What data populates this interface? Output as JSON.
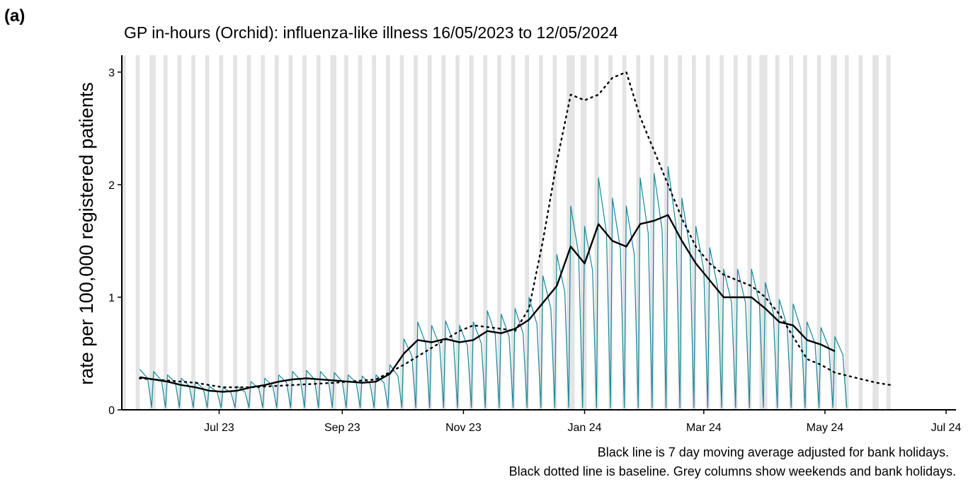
{
  "chart_data": {
    "type": "line",
    "panel_label": "(a)",
    "title": "GP in-hours (Orchid): influenza-like illness 16/05/2023 to 12/05/2024",
    "y_label": "rate per 100,000 registered patients",
    "notes": [
      "Black line is 7 day moving average adjusted for bank holidays.",
      "Black dotted line is baseline. Grey columns show weekends and bank holidays."
    ],
    "xlim": [
      "2023-05-13",
      "2024-07-06"
    ],
    "xticks": [
      {
        "value": "2023-07-01",
        "label": "Jul 23"
      },
      {
        "value": "2023-09-01",
        "label": "Sep 23"
      },
      {
        "value": "2023-11-01",
        "label": "Nov 23"
      },
      {
        "value": "2024-01-01",
        "label": "Jan 24"
      },
      {
        "value": "2024-03-01",
        "label": "Mar 24"
      },
      {
        "value": "2024-05-01",
        "label": "May 24"
      },
      {
        "value": "2024-07-01",
        "label": "Jul 24"
      }
    ],
    "ylim": [
      0,
      3.15
    ],
    "yticks": [
      0,
      1,
      2,
      3
    ],
    "weekend_shading": true,
    "shading_range": [
      "2023-05-13",
      "2024-06-02"
    ],
    "shading_color": "#e3e3e3",
    "bank_holidays": [
      "2023-05-29",
      "2023-08-28",
      "2023-12-25",
      "2023-12-26",
      "2024-01-01",
      "2024-03-29",
      "2024-04-01",
      "2024-05-06",
      "2024-05-27"
    ],
    "series": [
      {
        "name": "daily rate",
        "color": "#17879a",
        "width": 1.2,
        "dash": null,
        "x": [
          "2023-05-22",
          "2023-05-26",
          "2023-05-28",
          "2023-05-29",
          "2023-06-02",
          "2023-06-04",
          "2023-06-05",
          "2023-06-09",
          "2023-06-11",
          "2023-06-12",
          "2023-06-16",
          "2023-06-18",
          "2023-06-19",
          "2023-06-23",
          "2023-06-25",
          "2023-06-26",
          "2023-06-30",
          "2023-07-02",
          "2023-07-03",
          "2023-07-07",
          "2023-07-09",
          "2023-07-10",
          "2023-07-14",
          "2023-07-16",
          "2023-07-17",
          "2023-07-21",
          "2023-07-23",
          "2023-07-24",
          "2023-07-28",
          "2023-07-30",
          "2023-07-31",
          "2023-08-04",
          "2023-08-06",
          "2023-08-07",
          "2023-08-11",
          "2023-08-13",
          "2023-08-14",
          "2023-08-18",
          "2023-08-20",
          "2023-08-21",
          "2023-08-25",
          "2023-08-27",
          "2023-08-28",
          "2023-09-01",
          "2023-09-03",
          "2023-09-04",
          "2023-09-08",
          "2023-09-10",
          "2023-09-11",
          "2023-09-15",
          "2023-09-17",
          "2023-09-18",
          "2023-09-22",
          "2023-09-24",
          "2023-09-25",
          "2023-09-29",
          "2023-10-01",
          "2023-10-02",
          "2023-10-06",
          "2023-10-08",
          "2023-10-09",
          "2023-10-13",
          "2023-10-15",
          "2023-10-16",
          "2023-10-20",
          "2023-10-22",
          "2023-10-23",
          "2023-10-27",
          "2023-10-29",
          "2023-10-30",
          "2023-11-03",
          "2023-11-05",
          "2023-11-06",
          "2023-11-10",
          "2023-11-12",
          "2023-11-13",
          "2023-11-17",
          "2023-11-19",
          "2023-11-20",
          "2023-11-24",
          "2023-11-26",
          "2023-11-27",
          "2023-12-01",
          "2023-12-03",
          "2023-12-04",
          "2023-12-08",
          "2023-12-10",
          "2023-12-11",
          "2023-12-15",
          "2023-12-17",
          "2023-12-18",
          "2023-12-22",
          "2023-12-24",
          "2023-12-25",
          "2023-12-29",
          "2023-12-31",
          "2024-01-01",
          "2024-01-05",
          "2024-01-07",
          "2024-01-08",
          "2024-01-12",
          "2024-01-14",
          "2024-01-15",
          "2024-01-19",
          "2024-01-21",
          "2024-01-22",
          "2024-01-26",
          "2024-01-28",
          "2024-01-29",
          "2024-02-02",
          "2024-02-04",
          "2024-02-05",
          "2024-02-09",
          "2024-02-11",
          "2024-02-12",
          "2024-02-16",
          "2024-02-18",
          "2024-02-19",
          "2024-02-23",
          "2024-02-25",
          "2024-02-26",
          "2024-03-01",
          "2024-03-03",
          "2024-03-04",
          "2024-03-08",
          "2024-03-10",
          "2024-03-11",
          "2024-03-15",
          "2024-03-17",
          "2024-03-18",
          "2024-03-22",
          "2024-03-24",
          "2024-03-25",
          "2024-03-29",
          "2024-03-31",
          "2024-04-01",
          "2024-04-05",
          "2024-04-07",
          "2024-04-08",
          "2024-04-12",
          "2024-04-14",
          "2024-04-15",
          "2024-04-19",
          "2024-04-21",
          "2024-04-22",
          "2024-04-26",
          "2024-04-28",
          "2024-04-29",
          "2024-05-03",
          "2024-05-05",
          "2024-05-06",
          "2024-05-10",
          "2024-05-12"
        ],
        "values": [
          0.36,
          0.28,
          0.02,
          0.34,
          0.26,
          0.02,
          0.31,
          0.24,
          0.02,
          0.28,
          0.21,
          0.02,
          0.25,
          0.19,
          0.02,
          0.21,
          0.16,
          0.02,
          0.2,
          0.15,
          0.02,
          0.21,
          0.16,
          0.02,
          0.25,
          0.19,
          0.02,
          0.28,
          0.21,
          0.02,
          0.31,
          0.24,
          0.02,
          0.34,
          0.26,
          0.02,
          0.35,
          0.27,
          0.02,
          0.34,
          0.26,
          0.02,
          0.33,
          0.25,
          0.02,
          0.31,
          0.24,
          0.02,
          0.3,
          0.23,
          0.02,
          0.31,
          0.24,
          0.02,
          0.4,
          0.3,
          0.02,
          0.63,
          0.48,
          0.02,
          0.78,
          0.59,
          0.02,
          0.75,
          0.57,
          0.02,
          0.79,
          0.6,
          0.02,
          0.75,
          0.57,
          0.02,
          0.78,
          0.59,
          0.02,
          0.88,
          0.67,
          0.02,
          0.85,
          0.65,
          0.02,
          0.9,
          0.68,
          0.02,
          1.0,
          0.76,
          0.02,
          1.19,
          0.9,
          0.02,
          1.38,
          1.05,
          0.02,
          1.81,
          1.38,
          0.02,
          1.63,
          1.24,
          0.02,
          2.06,
          1.57,
          0.02,
          1.88,
          1.43,
          0.02,
          1.81,
          1.38,
          0.02,
          2.06,
          1.57,
          0.02,
          2.1,
          1.6,
          0.02,
          2.16,
          1.64,
          0.02,
          1.88,
          1.43,
          0.02,
          1.63,
          1.24,
          0.02,
          1.44,
          1.09,
          0.02,
          1.25,
          0.95,
          0.02,
          1.25,
          0.95,
          0.02,
          1.25,
          0.95,
          0.02,
          1.13,
          0.86,
          0.02,
          0.98,
          0.74,
          0.02,
          0.94,
          0.71,
          0.02,
          0.78,
          0.59,
          0.02,
          0.73,
          0.55,
          0.02,
          0.65,
          0.49,
          0.02
        ]
      },
      {
        "name": "7 day moving average",
        "color": "#000000",
        "width": 2.4,
        "dash": null,
        "x": [
          "2023-05-22",
          "2023-05-29",
          "2023-06-05",
          "2023-06-12",
          "2023-06-19",
          "2023-06-26",
          "2023-07-03",
          "2023-07-10",
          "2023-07-17",
          "2023-07-24",
          "2023-07-31",
          "2023-08-07",
          "2023-08-14",
          "2023-08-21",
          "2023-08-28",
          "2023-09-04",
          "2023-09-11",
          "2023-09-18",
          "2023-09-25",
          "2023-10-02",
          "2023-10-09",
          "2023-10-16",
          "2023-10-23",
          "2023-10-30",
          "2023-11-06",
          "2023-11-13",
          "2023-11-20",
          "2023-11-27",
          "2023-12-04",
          "2023-12-11",
          "2023-12-18",
          "2023-12-25",
          "2024-01-01",
          "2024-01-08",
          "2024-01-15",
          "2024-01-22",
          "2024-01-29",
          "2024-02-05",
          "2024-02-12",
          "2024-02-19",
          "2024-02-26",
          "2024-03-04",
          "2024-03-11",
          "2024-03-18",
          "2024-03-25",
          "2024-04-01",
          "2024-04-08",
          "2024-04-15",
          "2024-04-22",
          "2024-04-29",
          "2024-05-06"
        ],
        "values": [
          0.29,
          0.27,
          0.25,
          0.22,
          0.2,
          0.17,
          0.16,
          0.17,
          0.2,
          0.22,
          0.25,
          0.27,
          0.28,
          0.27,
          0.26,
          0.25,
          0.24,
          0.25,
          0.32,
          0.5,
          0.62,
          0.6,
          0.63,
          0.6,
          0.62,
          0.7,
          0.68,
          0.72,
          0.8,
          0.95,
          1.1,
          1.45,
          1.3,
          1.65,
          1.5,
          1.45,
          1.65,
          1.68,
          1.73,
          1.5,
          1.3,
          1.15,
          1.0,
          1.0,
          1.0,
          0.9,
          0.78,
          0.75,
          0.62,
          0.58,
          0.52
        ]
      },
      {
        "name": "baseline",
        "color": "#000000",
        "width": 2.4,
        "dash": "2 6",
        "x": [
          "2023-05-22",
          "2023-06-05",
          "2023-06-19",
          "2023-07-03",
          "2023-07-17",
          "2023-08-07",
          "2023-08-28",
          "2023-09-18",
          "2023-10-02",
          "2023-10-16",
          "2023-10-30",
          "2023-11-06",
          "2023-11-20",
          "2023-11-27",
          "2023-12-04",
          "2023-12-11",
          "2023-12-18",
          "2023-12-25",
          "2024-01-01",
          "2024-01-08",
          "2024-01-15",
          "2024-01-22",
          "2024-01-29",
          "2024-02-05",
          "2024-02-12",
          "2024-02-19",
          "2024-02-26",
          "2024-03-04",
          "2024-03-11",
          "2024-03-18",
          "2024-03-25",
          "2024-04-01",
          "2024-04-08",
          "2024-04-15",
          "2024-04-22",
          "2024-04-29",
          "2024-05-06",
          "2024-05-13",
          "2024-05-20",
          "2024-05-27",
          "2024-06-03"
        ],
        "values": [
          0.28,
          0.26,
          0.24,
          0.2,
          0.2,
          0.22,
          0.24,
          0.27,
          0.4,
          0.55,
          0.7,
          0.75,
          0.72,
          0.7,
          0.9,
          1.5,
          2.2,
          2.8,
          2.75,
          2.8,
          2.95,
          3.0,
          2.6,
          2.3,
          2.0,
          1.7,
          1.45,
          1.3,
          1.2,
          1.15,
          1.1,
          1.0,
          0.85,
          0.65,
          0.45,
          0.4,
          0.33,
          0.3,
          0.27,
          0.24,
          0.22
        ]
      }
    ]
  }
}
